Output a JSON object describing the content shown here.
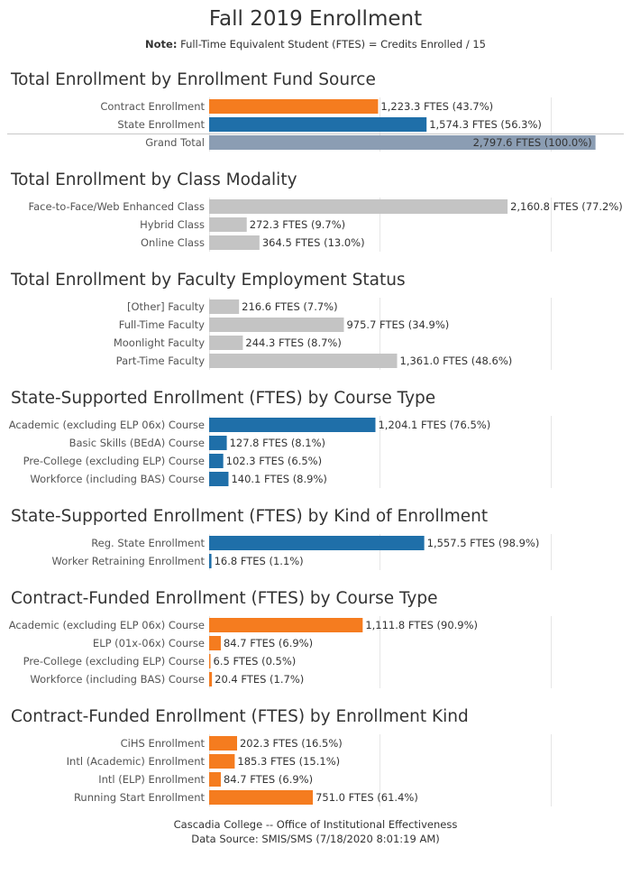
{
  "title": "Fall 2019 Enrollment",
  "note_label": "Note:",
  "note_text": "Full-Time Equivalent Student (FTES) = Credits Enrolled / 15",
  "colors": {
    "orange": "#f57c1f",
    "blue": "#1f6fa9",
    "gray": "#c4c4c4",
    "total": "#8b9db3"
  },
  "chart_data": [
    {
      "type": "bar",
      "title": "Total Enrollment by Enrollment Fund Source",
      "categories": [
        "Contract Enrollment",
        "State Enrollment",
        "Grand Total"
      ],
      "values": [
        1223.3,
        1574.3,
        2797.6
      ],
      "labels": [
        "1,223.3 FTES (43.7%)",
        "1,574.3 FTES (56.3%)",
        "2,797.6 FTES (100.0%)"
      ],
      "bar_colors": [
        "orange",
        "blue",
        "total"
      ],
      "xlim": [
        0,
        2800
      ]
    },
    {
      "type": "bar",
      "title": "Total Enrollment by Class Modality",
      "categories": [
        "Face-to-Face/Web Enhanced Class",
        "Hybrid Class",
        "Online Class"
      ],
      "values": [
        2160.8,
        272.3,
        364.5
      ],
      "labels": [
        "2,160.8 FTES (77.2%)",
        "272.3 FTES (9.7%)",
        "364.5 FTES (13.0%)"
      ],
      "bar_colors": [
        "gray",
        "gray",
        "gray"
      ],
      "xlim": [
        0,
        2800
      ]
    },
    {
      "type": "bar",
      "title": "Total Enrollment by Faculty Employment Status",
      "categories": [
        "[Other] Faculty",
        "Full-Time Faculty",
        "Moonlight Faculty",
        "Part-Time Faculty"
      ],
      "values": [
        216.6,
        975.7,
        244.3,
        1361.0
      ],
      "labels": [
        "216.6 FTES (7.7%)",
        "975.7 FTES (34.9%)",
        "244.3 FTES (8.7%)",
        "1,361.0 FTES (48.6%)"
      ],
      "bar_colors": [
        "gray",
        "gray",
        "gray",
        "gray"
      ],
      "xlim": [
        0,
        2800
      ]
    },
    {
      "type": "bar",
      "title": "State-Supported Enrollment (FTES) by Course Type",
      "categories": [
        "Academic (excluding ELP 06x) Course",
        "Basic Skills (BEdA) Course",
        "Pre-College (excluding ELP) Course",
        "Workforce (including BAS) Course"
      ],
      "values": [
        1204.1,
        127.8,
        102.3,
        140.1
      ],
      "labels": [
        "1,204.1 FTES (76.5%)",
        "127.8 FTES (8.1%)",
        "102.3 FTES (6.5%)",
        "140.1 FTES (8.9%)"
      ],
      "bar_colors": [
        "blue",
        "blue",
        "blue",
        "blue"
      ],
      "xlim": [
        0,
        2800
      ]
    },
    {
      "type": "bar",
      "title": "State-Supported Enrollment (FTES) by Kind of Enrollment",
      "categories": [
        "Reg. State Enrollment",
        "Worker Retraining Enrollment"
      ],
      "values": [
        1557.5,
        16.8
      ],
      "labels": [
        "1,557.5 FTES (98.9%)",
        "16.8 FTES (1.1%)"
      ],
      "bar_colors": [
        "blue",
        "blue"
      ],
      "xlim": [
        0,
        2800
      ]
    },
    {
      "type": "bar",
      "title": "Contract-Funded Enrollment (FTES) by Course Type",
      "categories": [
        "Academic (excluding ELP 06x) Course",
        "ELP (01x-06x) Course",
        "Pre-College (excluding ELP) Course",
        "Workforce (including BAS) Course"
      ],
      "values": [
        1111.8,
        84.7,
        6.5,
        20.4
      ],
      "labels": [
        "1,111.8 FTES (90.9%)",
        "84.7 FTES (6.9%)",
        "6.5 FTES (0.5%)",
        "20.4 FTES (1.7%)"
      ],
      "bar_colors": [
        "orange",
        "orange",
        "orange",
        "orange"
      ],
      "xlim": [
        0,
        2800
      ]
    },
    {
      "type": "bar",
      "title": "Contract-Funded Enrollment (FTES) by Enrollment Kind",
      "categories": [
        "CiHS Enrollment",
        "Intl (Academic) Enrollment",
        "Intl (ELP) Enrollment",
        "Running Start Enrollment"
      ],
      "values": [
        202.3,
        185.3,
        84.7,
        751.0
      ],
      "labels": [
        "202.3 FTES (16.5%)",
        "185.3 FTES (15.1%)",
        "84.7 FTES (6.9%)",
        "751.0 FTES (61.4%)"
      ],
      "bar_colors": [
        "orange",
        "orange",
        "orange",
        "orange"
      ],
      "xlim": [
        0,
        2800
      ]
    }
  ],
  "footer": {
    "line1": "Cascadia College -- Office of Institutional Effectiveness",
    "line2": "Data Source: SMIS/SMS (7/18/2020 8:01:19 AM)"
  }
}
